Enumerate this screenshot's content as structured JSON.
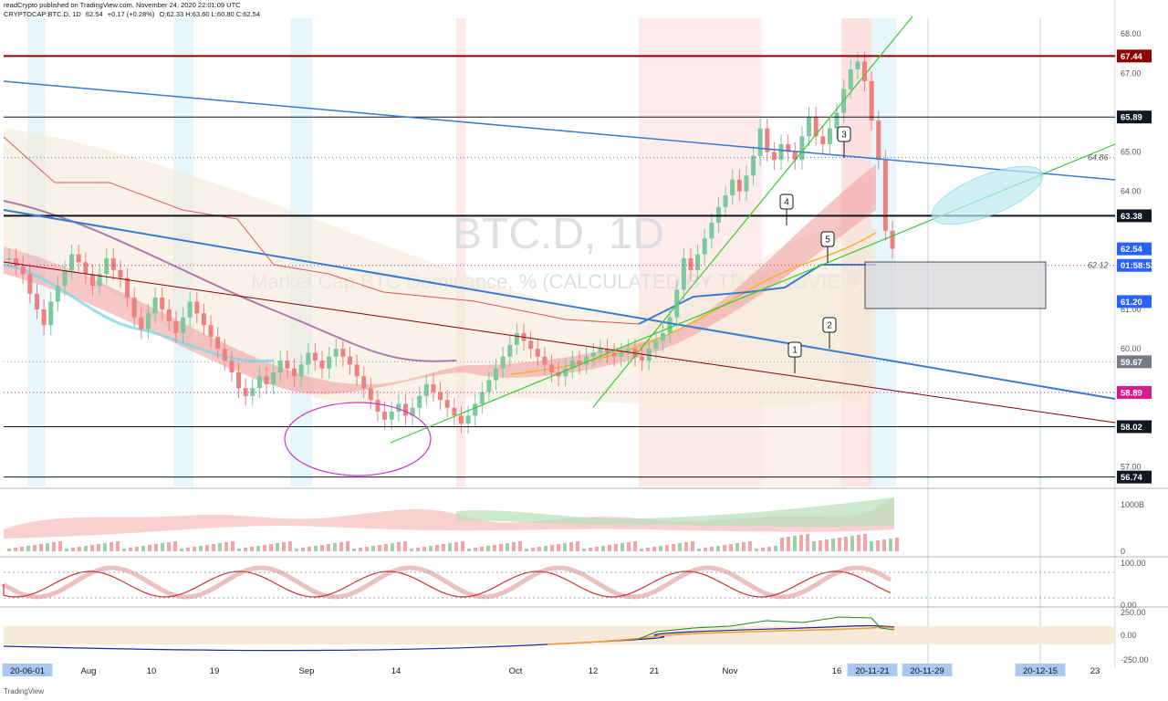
{
  "header": {
    "publisher": "readCrypto published on TradingView.com, November 24, 2020 22:01:09 UTC",
    "symbol": "CRYPTOCAP:BTC.D, 1D",
    "last": "62.54",
    "change": "+0.17 (+0.28%)",
    "ohlc": "O:62.33 H:63.60 L:60.80 C:62.54"
  },
  "branding": "TradingView",
  "colors": {
    "resistance": "#8b0000",
    "trendline_blue": "#3a7bd5",
    "trendline_green": "#33cc33",
    "ellipse_pink": "#cc33cc",
    "ellipse_cyan": "#7fd6e6",
    "up_candle": "#7cc9a0",
    "down_candle": "#ef8080",
    "label_red": "#8b0000",
    "label_black": "#131722",
    "label_blue": "#2962ff",
    "label_gray": "#787b86",
    "label_magenta": "#d81b8c"
  },
  "chart_data": {
    "type": "candlestick",
    "watermark_symbol": "BTC.D, 1D",
    "watermark_desc": "Market Cap BTC Dominance, % (CALCULATED BY TRADINGVIEW)",
    "x_dates": [
      "20-06-01",
      "Aug",
      "10",
      "19",
      "Sep",
      "14",
      "Oct",
      "12",
      "21",
      "Nov",
      "16",
      "20-11-21",
      "20-11-29",
      "20-12-15",
      "23"
    ],
    "y_ticks": [
      "68.00",
      "67.00",
      "65.00",
      "64.00",
      "61.00",
      "60.00",
      "57.00"
    ],
    "ylim": [
      56.5,
      68.4
    ],
    "price_labels": [
      {
        "value": 67.44,
        "text": "67.44",
        "color": "#8b0000"
      },
      {
        "value": 65.89,
        "text": "65.89",
        "color": "#131722"
      },
      {
        "value": 63.38,
        "text": "63.38",
        "color": "#131722"
      },
      {
        "value": 62.54,
        "text": "62.54",
        "color": "#2962ff"
      },
      {
        "value": 62.12,
        "text": "01:58:53",
        "color": "#2962ff"
      },
      {
        "value": 61.2,
        "text": "61.20",
        "color": "#2962ff"
      },
      {
        "value": 59.67,
        "text": "59.67",
        "color": "#787b86"
      },
      {
        "value": 58.89,
        "text": "58.89",
        "color": "#d81b8c"
      },
      {
        "value": 58.02,
        "text": "58.02",
        "color": "#131722"
      },
      {
        "value": 56.74,
        "text": "56.74",
        "color": "#131722"
      }
    ],
    "inline_labels": [
      {
        "value": 64.86,
        "text": "64.86"
      },
      {
        "value": 62.12,
        "text": "62.12"
      }
    ],
    "annotations": [
      "1",
      "2",
      "3",
      "4",
      "5"
    ],
    "volume_axis": [
      "1000B",
      "0"
    ],
    "oscillator_axis": [
      "100.00",
      "0.00"
    ],
    "third_axis": [
      "250.00",
      "0.00",
      "-250.00"
    ],
    "closes": [
      62.3,
      62.1,
      61.9,
      61.4,
      61.0,
      60.6,
      61.2,
      61.6,
      62.0,
      62.4,
      62.2,
      61.9,
      61.6,
      61.9,
      62.3,
      62.0,
      61.8,
      61.3,
      60.8,
      60.5,
      60.9,
      61.3,
      61.0,
      60.7,
      60.4,
      60.8,
      61.2,
      60.9,
      60.6,
      60.3,
      60.0,
      59.7,
      59.4,
      59.0,
      58.8,
      59.0,
      59.3,
      59.1,
      59.4,
      59.7,
      59.5,
      59.3,
      59.6,
      59.9,
      59.7,
      59.5,
      59.8,
      60.0,
      59.8,
      59.6,
      59.3,
      59.0,
      58.7,
      58.4,
      58.2,
      58.4,
      58.6,
      58.3,
      58.5,
      58.8,
      59.1,
      58.9,
      58.7,
      58.5,
      58.3,
      58.1,
      58.3,
      58.6,
      58.9,
      59.2,
      59.5,
      59.8,
      60.1,
      60.4,
      60.2,
      60.0,
      59.8,
      59.6,
      59.4,
      59.3,
      59.5,
      59.7,
      59.6,
      59.8,
      59.9,
      60.0,
      59.9,
      59.8,
      59.9,
      60.0,
      59.8,
      59.7,
      60.0,
      60.2,
      60.4,
      60.8,
      61.5,
      62.3,
      62.0,
      62.4,
      62.8,
      63.2,
      63.6,
      63.9,
      64.3,
      64.0,
      64.4,
      64.9,
      65.6,
      65.0,
      64.8,
      65.2,
      65.0,
      64.8,
      65.4,
      65.9,
      65.4,
      65.2,
      65.6,
      66.0,
      66.6,
      67.1,
      67.3,
      66.8,
      65.8,
      64.8,
      63.0,
      62.54
    ]
  }
}
